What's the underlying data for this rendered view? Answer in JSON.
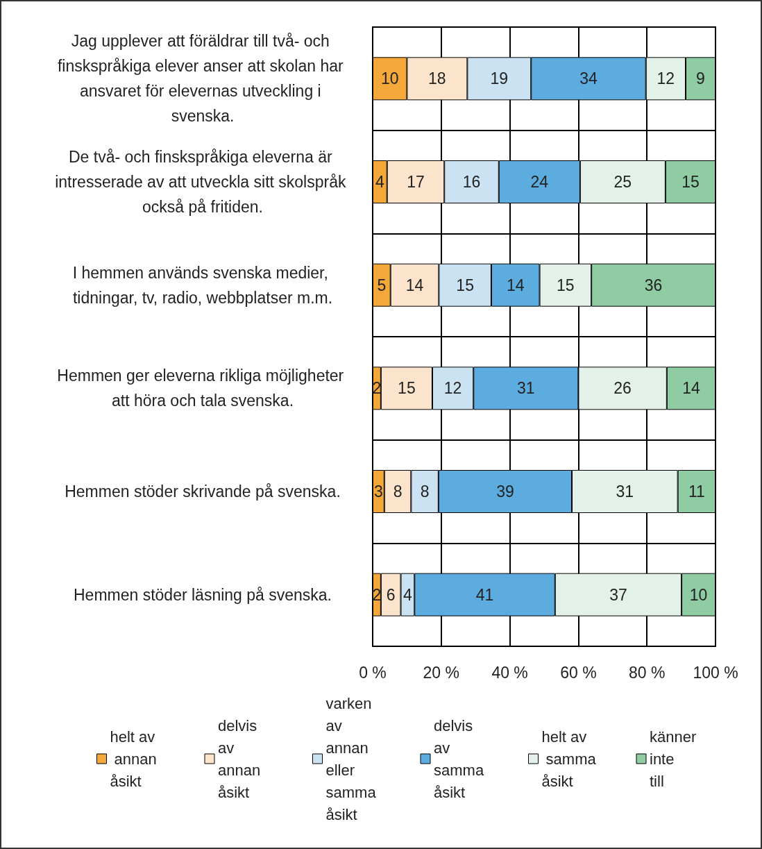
{
  "chart_data": {
    "type": "bar",
    "orientation": "horizontal",
    "stacked": true,
    "categories": [
      "Jag upplever att föräldrar till två- och finskspråkiga elever anser att skolan har ansvaret för elevernas utveckling i svenska.",
      "De två- och finskspråkiga eleverna är intresserade av att utveckla sitt skolspråk också på fritiden.",
      "I hemmen används svenska medier, tidningar, tv, radio, webbplatser m.m.",
      "Hemmen ger eleverna rikliga möjligheter att höra och tala svenska.",
      "Hemmen stöder skrivande på svenska.",
      "Hemmen stöder läsning på svenska."
    ],
    "series": [
      {
        "name": "helt av annan åsikt",
        "color": "#f4a83a",
        "values": [
          10.0,
          4.2,
          5.2,
          2.4,
          3.4,
          2.4
        ],
        "value_labels": [
          "10",
          "4",
          "5",
          "2",
          "3",
          "2"
        ]
      },
      {
        "name": "delvis av annan åsikt",
        "color": "#fbe4cb",
        "values": [
          17.6,
          16.7,
          14.1,
          15.0,
          7.8,
          5.8
        ],
        "value_labels": [
          "18",
          "17",
          "14",
          "15",
          "8",
          "6"
        ]
      },
      {
        "name": "varken av annan eller samma åsikt",
        "color": "#cbe2f3",
        "values": [
          18.6,
          15.9,
          15.3,
          12.0,
          8.0,
          4.0
        ],
        "value_labels": [
          "19",
          "16",
          "15",
          "12",
          "8",
          "4"
        ]
      },
      {
        "name": "delvis av samma åsikt",
        "color": "#5dace0",
        "values": [
          33.5,
          23.7,
          14.1,
          30.6,
          38.9,
          41.0
        ],
        "value_labels": [
          "34",
          "24",
          "14",
          "31",
          "39",
          "41"
        ]
      },
      {
        "name": "helt av samma åsikt",
        "color": "#e3f1e8",
        "values": [
          11.6,
          24.9,
          15.1,
          25.8,
          30.9,
          36.9
        ],
        "value_labels": [
          "12",
          "25",
          "15",
          "26",
          "31",
          "37"
        ]
      },
      {
        "name": "känner inte till",
        "color": "#8fcba3",
        "values": [
          8.7,
          14.6,
          36.2,
          14.2,
          11.0,
          9.9
        ],
        "value_labels": [
          "9",
          "15",
          "36",
          "14",
          "11",
          "10"
        ]
      }
    ],
    "xlim": [
      0,
      100
    ],
    "xticks": [
      {
        "value": 0,
        "label": "0 %"
      },
      {
        "value": 20,
        "label": "20 %"
      },
      {
        "value": 40,
        "label": "40 %"
      },
      {
        "value": 60,
        "label": "60 %"
      },
      {
        "value": 80,
        "label": "80 %"
      },
      {
        "value": 100,
        "label": "100 %"
      }
    ],
    "grid": true,
    "legend": "bottom"
  }
}
